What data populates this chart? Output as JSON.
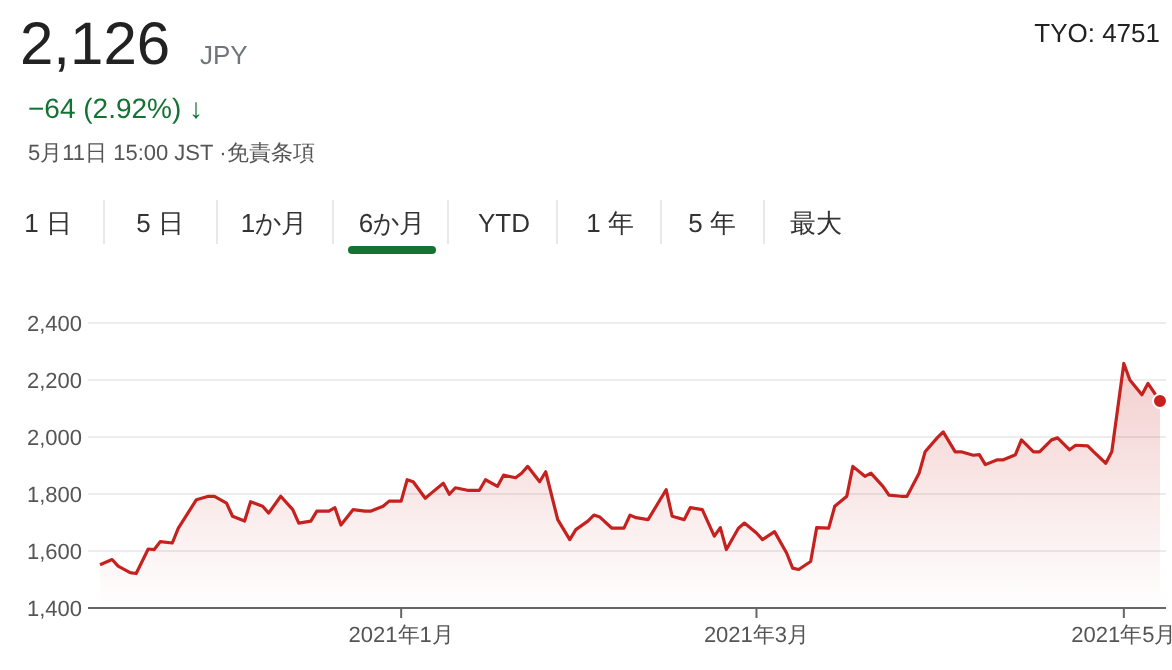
{
  "chart_data": {
    "type": "area",
    "title": "2,126",
    "subtitle": "JPY",
    "annotations": [
      "−64 (2.92%) ↓",
      "5月11日 15:00 JST ·免責条項",
      "1 日",
      "5 日",
      "1か月",
      "6か月",
      "YTD",
      "1 年",
      "5 年",
      "最大",
      "TYO: 4751"
    ],
    "x": [
      "2020-11-12",
      "2020-11-14",
      "2020-11-15",
      "2020-11-17",
      "2020-11-18",
      "2020-11-20",
      "2020-11-21",
      "2020-11-22",
      "2020-11-24",
      "2020-11-25",
      "2020-11-28",
      "2020-11-30",
      "2020-12-01",
      "2020-12-03",
      "2020-12-04",
      "2020-12-06",
      "2020-12-07",
      "2020-12-09",
      "2020-12-10",
      "2020-12-12",
      "2020-12-14",
      "2020-12-15",
      "2020-12-17",
      "2020-12-18",
      "2020-12-20",
      "2020-12-21",
      "2020-12-22",
      "2020-12-24",
      "2020-12-26",
      "2020-12-27",
      "2020-12-29",
      "2020-12-30",
      "2021-01-01",
      "2021-01-02",
      "2021-01-03",
      "2021-01-05",
      "2021-01-06",
      "2021-01-08",
      "2021-01-09",
      "2021-01-10",
      "2021-01-12",
      "2021-01-14",
      "2021-01-15",
      "2021-01-17",
      "2021-01-18",
      "2021-01-20",
      "2021-01-21",
      "2021-01-22",
      "2021-01-24",
      "2021-01-25",
      "2021-01-27",
      "2021-01-29",
      "2021-01-30",
      "2021-02-01",
      "2021-02-02",
      "2021-02-03",
      "2021-02-05",
      "2021-02-07",
      "2021-02-08",
      "2021-02-09",
      "2021-02-11",
      "2021-02-14",
      "2021-02-15",
      "2021-02-17",
      "2021-02-18",
      "2021-02-20",
      "2021-02-22",
      "2021-02-23",
      "2021-02-24",
      "2021-02-26",
      "2021-02-27",
      "2021-03-01",
      "2021-03-02",
      "2021-03-04",
      "2021-03-06",
      "2021-03-07",
      "2021-03-08",
      "2021-03-10",
      "2021-03-11",
      "2021-03-13",
      "2021-03-14",
      "2021-03-16",
      "2021-03-17",
      "2021-03-19",
      "2021-03-20",
      "2021-03-22",
      "2021-03-23",
      "2021-03-25",
      "2021-03-26",
      "2021-03-28",
      "2021-03-29",
      "2021-03-31",
      "2021-04-01",
      "2021-04-03",
      "2021-04-04",
      "2021-04-06",
      "2021-04-07",
      "2021-04-08",
      "2021-04-10",
      "2021-04-11",
      "2021-04-13",
      "2021-04-14",
      "2021-04-16",
      "2021-04-17",
      "2021-04-19",
      "2021-04-20",
      "2021-04-22",
      "2021-04-23",
      "2021-04-25",
      "2021-04-26",
      "2021-04-28",
      "2021-04-29",
      "2021-05-01",
      "2021-05-02",
      "2021-05-04",
      "2021-05-05",
      "2021-05-07"
    ],
    "series": [
      {
        "color": "#c5221f",
        "values": [
          1552,
          1570,
          1547,
          1524,
          1521,
          1607,
          1605,
          1633,
          1628,
          1680,
          1780,
          1792,
          1792,
          1768,
          1722,
          1705,
          1773,
          1757,
          1733,
          1792,
          1745,
          1698,
          1705,
          1740,
          1740,
          1752,
          1691,
          1745,
          1740,
          1740,
          1757,
          1775,
          1775,
          1850,
          1843,
          1785,
          1803,
          1838,
          1799,
          1822,
          1813,
          1813,
          1850,
          1827,
          1866,
          1857,
          1873,
          1897,
          1843,
          1878,
          1710,
          1640,
          1675,
          1705,
          1726,
          1719,
          1680,
          1680,
          1726,
          1717,
          1710,
          1815,
          1722,
          1710,
          1752,
          1745,
          1652,
          1682,
          1605,
          1680,
          1698,
          1663,
          1640,
          1668,
          1593,
          1540,
          1535,
          1563,
          1682,
          1680,
          1757,
          1792,
          1897,
          1862,
          1873,
          1827,
          1796,
          1792,
          1792,
          1873,
          1948,
          1997,
          2018,
          1948,
          1948,
          1936,
          1938,
          1903,
          1920,
          1920,
          1938,
          1990,
          1948,
          1948,
          1990,
          1997,
          1955,
          1971,
          1969,
          1948,
          1908,
          1948,
          2258,
          2200,
          2148,
          2188,
          2126
        ]
      }
    ],
    "xlim": [
      "2020-11-10",
      "2021-05-08"
    ],
    "xticks": [
      {
        "value": "2021-01-01",
        "label": "2021年1月"
      },
      {
        "value": "2021-03-01",
        "label": "2021年3月"
      },
      {
        "value": "2021-05-01",
        "label": "2021年5月"
      }
    ],
    "ylim": [
      1400,
      2400
    ],
    "yticks": [
      {
        "value": 1400,
        "label": "1,400"
      },
      {
        "value": 1600,
        "label": "1,600"
      },
      {
        "value": 1800,
        "label": "1,800"
      },
      {
        "value": 2000,
        "label": "2,000"
      },
      {
        "value": 2200,
        "label": "2,200"
      },
      {
        "value": 2400,
        "label": "2,400"
      }
    ],
    "grid": "y"
  }
}
